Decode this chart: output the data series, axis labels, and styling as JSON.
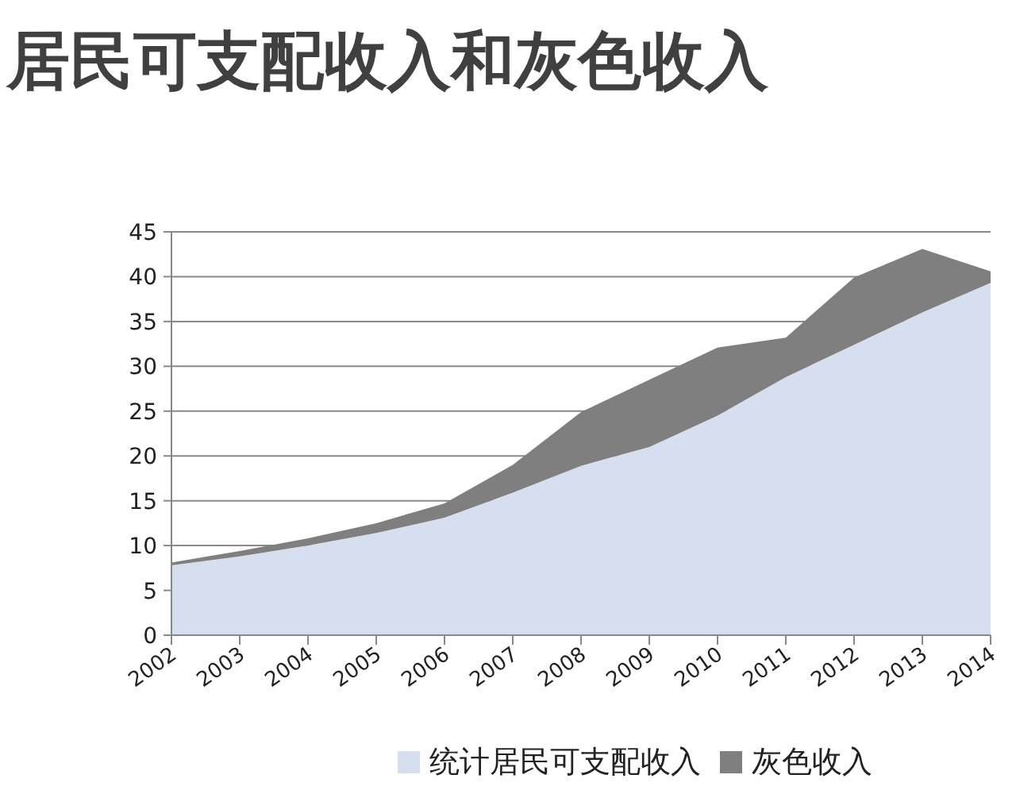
{
  "chart_data": {
    "type": "area",
    "title": "居民可支配收入和灰色收入",
    "stacked": true,
    "categories": [
      "2002",
      "2003",
      "2004",
      "2005",
      "2006",
      "2007",
      "2008",
      "2009",
      "2010",
      "2011",
      "2012",
      "2013",
      "2014"
    ],
    "series": [
      {
        "name": "统计居民可支配收入",
        "color": "#d5dff0",
        "values": [
          7.8,
          8.8,
          10.0,
          11.4,
          13.1,
          15.9,
          18.9,
          21.0,
          24.5,
          28.8,
          32.4,
          36.0,
          39.3
        ]
      },
      {
        "name": "灰色收入",
        "color": "#7f7f7f",
        "values": [
          0.3,
          0.6,
          0.8,
          1.1,
          1.6,
          3.1,
          6.0,
          7.5,
          7.6,
          4.4,
          7.5,
          7.1,
          1.3
        ]
      }
    ],
    "ylim": [
      0,
      45
    ],
    "yticks": [
      0,
      5,
      10,
      15,
      20,
      25,
      30,
      35,
      40,
      45
    ],
    "grid": "y",
    "legend": "bottom"
  }
}
